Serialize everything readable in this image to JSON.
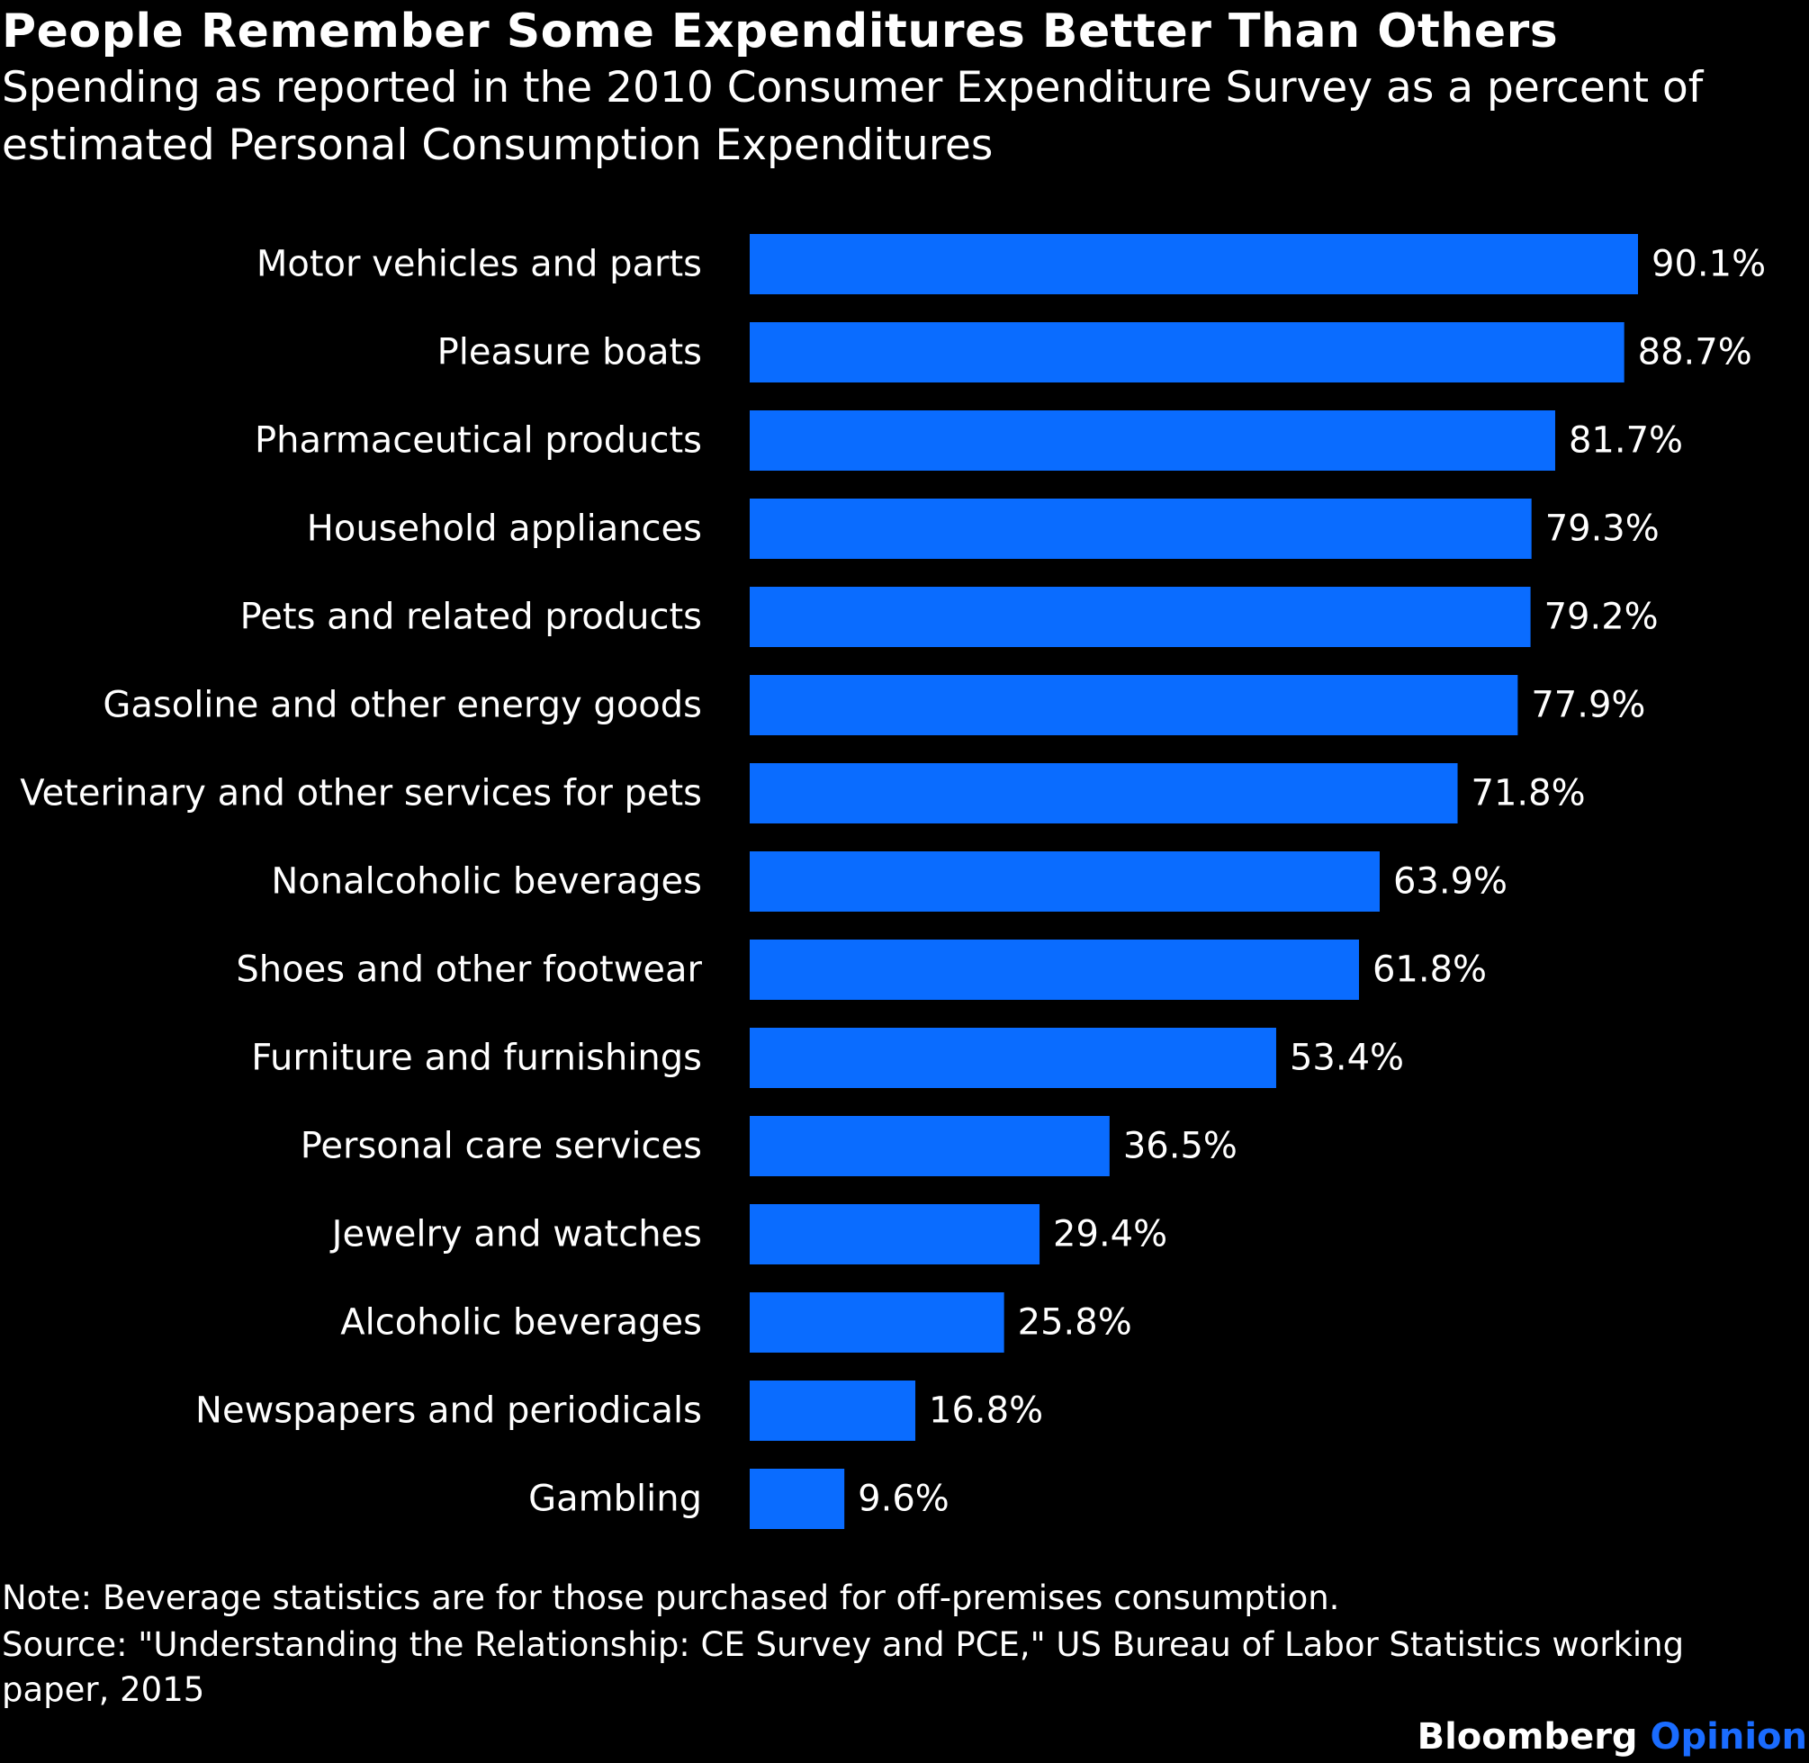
{
  "chart_data": {
    "type": "bar",
    "orientation": "horizontal",
    "title": "People Remember Some Expenditures Better Than Others",
    "subtitle": "Spending as reported in the 2010 Consumer Expenditure Survey as a percent of estimated Personal Consumption Expenditures",
    "categories": [
      "Motor vehicles and parts",
      "Pleasure boats",
      "Pharmaceutical products",
      "Household appliances",
      "Pets and related products",
      "Gasoline and other energy goods",
      "Veterinary and other services for pets",
      "Nonalcoholic beverages",
      "Shoes and other footwear",
      "Furniture and furnishings",
      "Personal care services",
      "Jewelry and watches",
      "Alcoholic beverages",
      "Newspapers and periodicals",
      "Gambling"
    ],
    "values": [
      90.1,
      88.7,
      81.7,
      79.3,
      79.2,
      77.9,
      71.8,
      63.9,
      61.8,
      53.4,
      36.5,
      29.4,
      25.8,
      16.8,
      9.6
    ],
    "value_labels": [
      "90.1%",
      "88.7%",
      "81.7%",
      "79.3%",
      "79.2%",
      "77.9%",
      "71.8%",
      "63.9%",
      "61.8%",
      "53.4%",
      "36.5%",
      "29.4%",
      "25.8%",
      "16.8%",
      "9.6%"
    ],
    "unit": "%",
    "xlim": [
      0,
      90.1
    ],
    "grid": false,
    "legend": "none",
    "bar_color": "#0a6cff",
    "note": "Note: Beverage statistics are for those purchased for off-premises consumption.",
    "source_line_1": "Source: \"Understanding the Relationship: CE Survey and PCE,\" US Bureau of Labor Statistics working",
    "source_line_2": "paper, 2015"
  },
  "branding": {
    "name": "Bloomberg",
    "product": "Opinion",
    "accent_color": "#1a6cff"
  },
  "background_color": "#000000"
}
